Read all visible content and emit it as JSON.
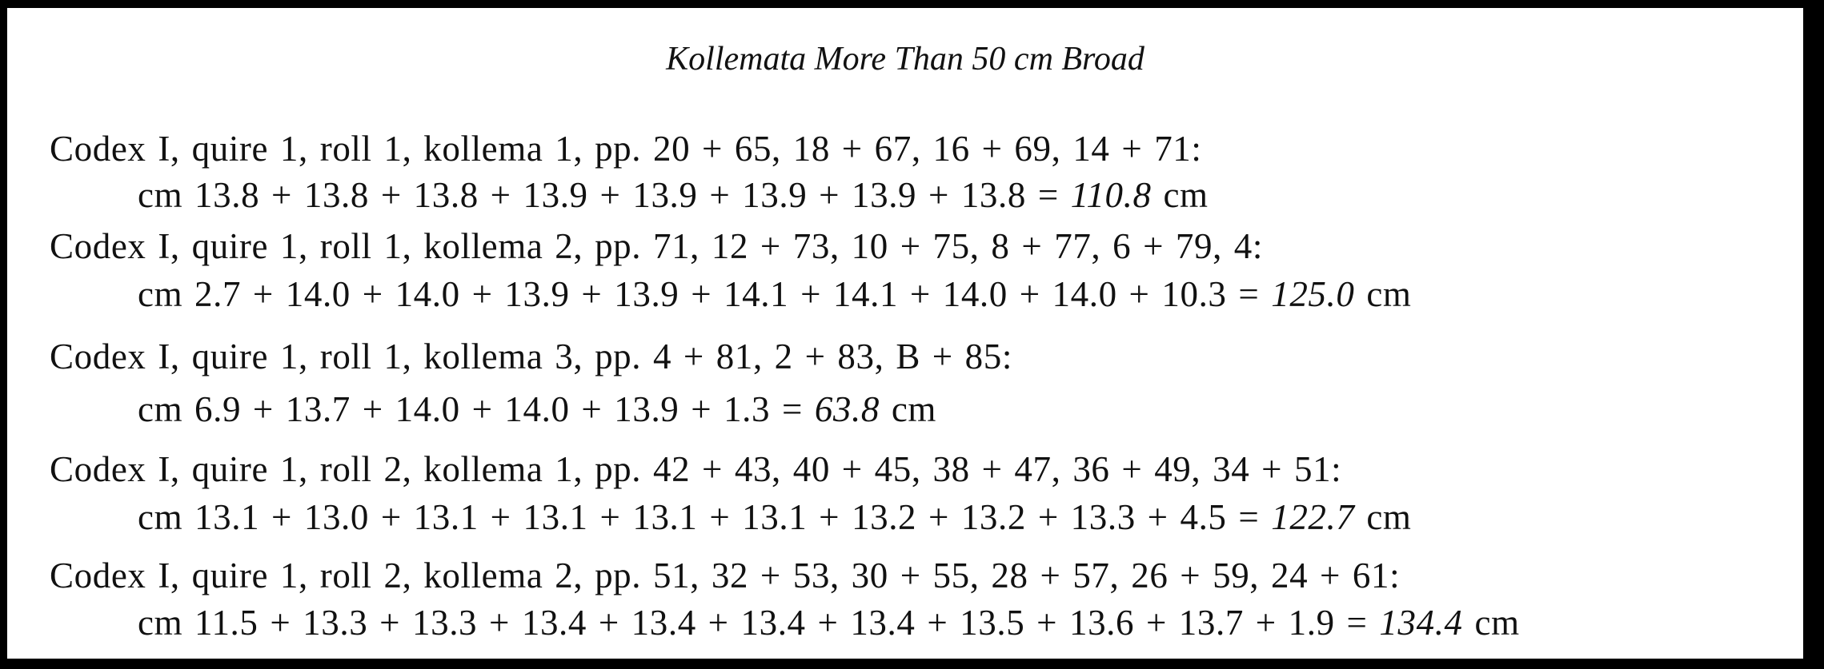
{
  "title": "Kollemata More Than 50 cm Broad",
  "entries": [
    {
      "header": "Codex I, quire 1, roll 1, kollema 1, pp. 20 + 65, 18 + 67, 16 + 69, 14 + 71:",
      "expression": "cm 13.8 + 13.8 + 13.8 + 13.9 + 13.9 + 13.9 + 13.9 + 13.8 =",
      "total": "110.8",
      "unit": "cm"
    },
    {
      "header": "Codex I, quire 1, roll 1, kollema 2, pp. 71, 12 + 73, 10 + 75, 8 + 77, 6 + 79, 4:",
      "expression": "cm 2.7 + 14.0 + 14.0 + 13.9 + 13.9 + 14.1 + 14.1 + 14.0 + 14.0 + 10.3 =",
      "total": "125.0",
      "unit": "cm"
    },
    {
      "header": "Codex I, quire 1, roll 1, kollema 3, pp. 4 + 81, 2 + 83, B + 85:",
      "expression": "cm 6.9 + 13.7 + 14.0 + 14.0 + 13.9 + 1.3 =",
      "total": "63.8",
      "unit": "cm"
    },
    {
      "header": "Codex I, quire 1, roll 2, kollema 1, pp. 42 + 43, 40 + 45, 38 + 47, 36 + 49, 34 + 51:",
      "expression": "cm 13.1 + 13.0 + 13.1 + 13.1 + 13.1 + 13.1 + 13.2 + 13.2 + 13.3 + 4.5 =",
      "total": "122.7",
      "unit": "cm"
    },
    {
      "header": "Codex I, quire 1, roll 2, kollema 2, pp. 51, 32 + 53, 30 + 55, 28 + 57, 26 + 59, 24 + 61:",
      "expression": "cm 11.5 + 13.3 + 13.3 + 13.4 + 13.4 + 13.4 + 13.4 + 13.5 + 13.6 + 13.7 + 1.9 =",
      "total": "134.4",
      "unit": "cm"
    }
  ]
}
